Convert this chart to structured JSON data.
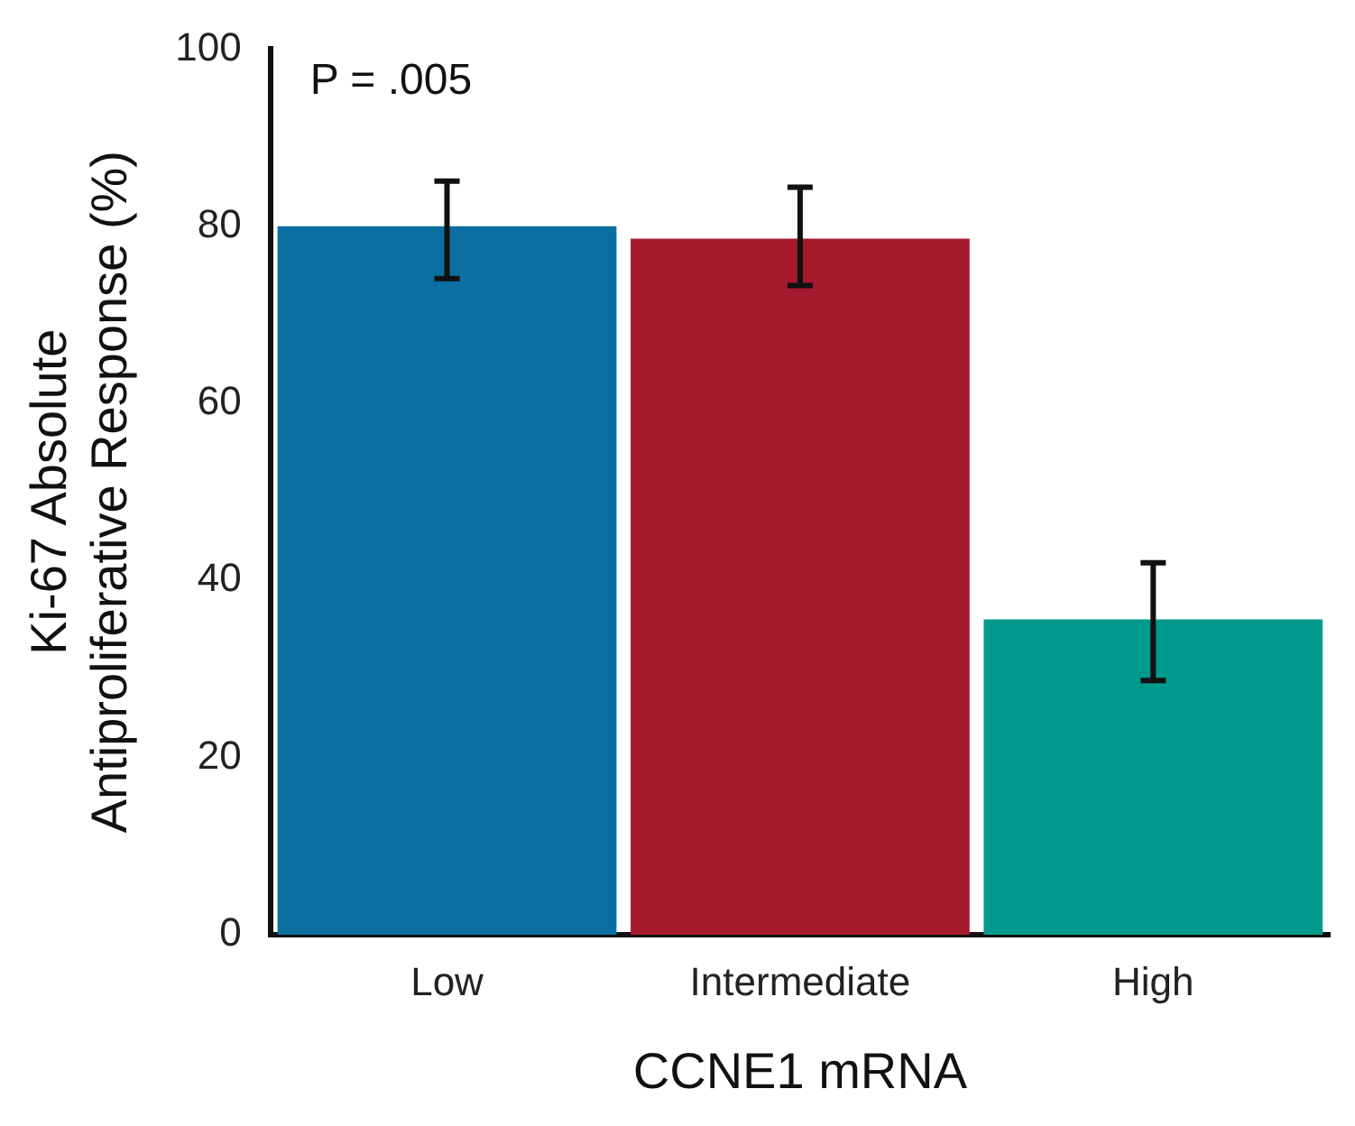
{
  "chart_data": {
    "type": "bar",
    "categories": [
      "Low",
      "Intermediate",
      "High"
    ],
    "values": [
      80,
      78.6,
      35.6
    ],
    "errors": [
      [
        74.1,
        85.1
      ],
      [
        73.3,
        84.4
      ],
      [
        28.7,
        42
      ]
    ],
    "colors": [
      "#0b6fa1",
      "#a5192d",
      "#009a8d"
    ],
    "xlabel": "CCNE1 mRNA",
    "ylabel": "Ki-67 Absolute\nAntiproliferative Response (%)",
    "annotations": [
      "P = .005"
    ],
    "ylim": [
      0,
      100
    ],
    "yticks": [
      0,
      20,
      40,
      60,
      80,
      100
    ],
    "grid": false,
    "legend": false
  }
}
